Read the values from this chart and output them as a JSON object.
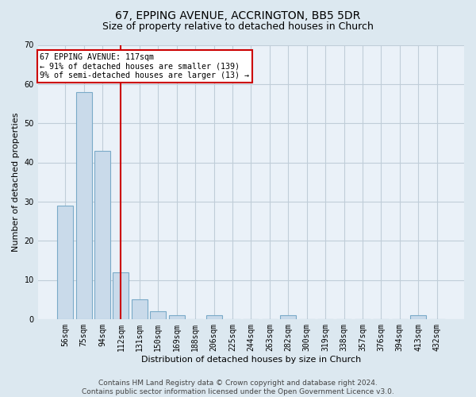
{
  "title": "67, EPPING AVENUE, ACCRINGTON, BB5 5DR",
  "subtitle": "Size of property relative to detached houses in Church",
  "xlabel": "Distribution of detached houses by size in Church",
  "ylabel": "Number of detached properties",
  "categories": [
    "56sqm",
    "75sqm",
    "94sqm",
    "112sqm",
    "131sqm",
    "150sqm",
    "169sqm",
    "188sqm",
    "206sqm",
    "225sqm",
    "244sqm",
    "263sqm",
    "282sqm",
    "300sqm",
    "319sqm",
    "338sqm",
    "357sqm",
    "376sqm",
    "394sqm",
    "413sqm",
    "432sqm"
  ],
  "values": [
    29,
    58,
    43,
    12,
    5,
    2,
    1,
    0,
    1,
    0,
    0,
    0,
    1,
    0,
    0,
    0,
    0,
    0,
    0,
    1,
    0
  ],
  "bar_color": "#c9daea",
  "bar_edge_color": "#7aaac8",
  "vline_x_idx": 3,
  "vline_color": "#cc0000",
  "ylim": [
    0,
    70
  ],
  "yticks": [
    0,
    10,
    20,
    30,
    40,
    50,
    60,
    70
  ],
  "annotation_text": "67 EPPING AVENUE: 117sqm\n← 91% of detached houses are smaller (139)\n9% of semi-detached houses are larger (13) →",
  "annotation_box_color": "#cc0000",
  "footer": "Contains HM Land Registry data © Crown copyright and database right 2024.\nContains public sector information licensed under the Open Government Licence v3.0.",
  "bg_color": "#dce8f0",
  "plot_bg_color": "#eaf1f8",
  "grid_color": "#c0cdd8",
  "title_fontsize": 10,
  "subtitle_fontsize": 9,
  "ylabel_fontsize": 8,
  "xlabel_fontsize": 8,
  "tick_fontsize": 7,
  "footer_fontsize": 6.5
}
